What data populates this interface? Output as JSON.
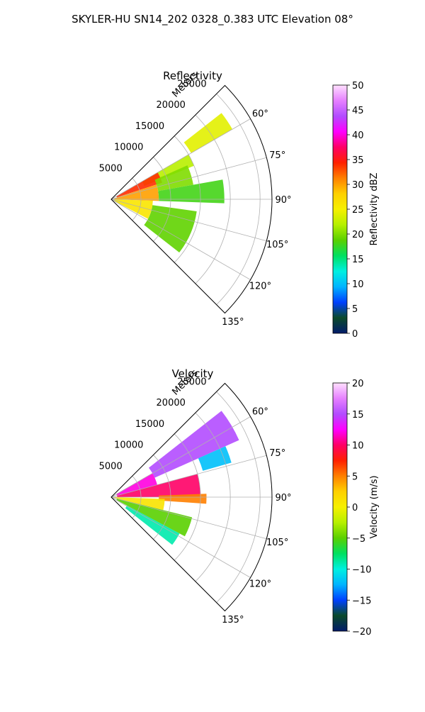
{
  "figure_title": "SKYLER-HU  SN14_202  0328_0.383 UTC Elevation 08°",
  "chart_data": [
    {
      "type": "heatmap",
      "subtype": "polar-sector radar PPI",
      "title": "Reflectivity",
      "radial_axis_label": "Meters",
      "radial_ticks": [
        5000,
        10000,
        15000,
        20000,
        25000
      ],
      "rlim": [
        0,
        27000
      ],
      "angle_ticks": [
        60,
        75,
        90,
        105,
        120,
        135
      ],
      "angle_tick_labels": [
        "60°",
        "75°",
        "90°",
        "105°",
        "120°",
        "135°"
      ],
      "theta_range_deg": [
        45,
        135
      ],
      "grid": true,
      "colorbar": {
        "label": "Reflectivity dBZ",
        "range": [
          0,
          50
        ],
        "ticks": [
          0,
          5,
          10,
          15,
          20,
          25,
          30,
          35,
          40,
          45,
          50
        ],
        "tick_labels": [
          "0",
          "5",
          "10",
          "15",
          "20",
          "25",
          "30",
          "35",
          "40",
          "45",
          "50"
        ],
        "stops": [
          "#021b6b",
          "#0a4a2a",
          "#0040ff",
          "#00b4ff",
          "#00f0e0",
          "#00e060",
          "#5ad000",
          "#b6f000",
          "#f6f000",
          "#ffd000",
          "#ff8000",
          "#ff2000",
          "#ff0066",
          "#ff00ff",
          "#b24cff",
          "#e680ff",
          "#ffe0ff"
        ]
      },
      "echo_regions": [
        {
          "theta": [
            52,
            60
          ],
          "r": [
            15500,
            23500
          ],
          "value": 24
        },
        {
          "theta": [
            60,
            68
          ],
          "r": [
            6000,
            15000
          ],
          "value": 22
        },
        {
          "theta": [
            60,
            72
          ],
          "r": [
            1000,
            9000
          ],
          "value": 34
        },
        {
          "theta": [
            72,
            92
          ],
          "r": [
            500,
            8000
          ],
          "value": 30
        },
        {
          "theta": [
            92,
            118
          ],
          "r": [
            500,
            7000
          ],
          "value": 26
        },
        {
          "theta": [
            66,
            80
          ],
          "r": [
            8000,
            14000
          ],
          "value": 20
        },
        {
          "theta": [
            80,
            92
          ],
          "r": [
            8000,
            19000
          ],
          "value": 18
        },
        {
          "theta": [
            98,
            128
          ],
          "r": [
            7000,
            14500
          ],
          "value": 19
        }
      ]
    },
    {
      "type": "heatmap",
      "subtype": "polar-sector radar PPI",
      "title": "Velocity",
      "radial_axis_label": "Meters",
      "radial_ticks": [
        5000,
        10000,
        15000,
        20000,
        25000
      ],
      "rlim": [
        0,
        27000
      ],
      "angle_ticks": [
        60,
        75,
        90,
        105,
        120,
        135
      ],
      "angle_tick_labels": [
        "60°",
        "75°",
        "90°",
        "105°",
        "120°",
        "135°"
      ],
      "theta_range_deg": [
        45,
        135
      ],
      "grid": true,
      "colorbar": {
        "label": "Velocity (m/s)",
        "range": [
          -20,
          20
        ],
        "ticks": [
          -20,
          -15,
          -10,
          -5,
          0,
          5,
          10,
          15,
          20
        ],
        "tick_labels": [
          "−20",
          "−15",
          "−10",
          "−5",
          "0",
          "5",
          "10",
          "15",
          "20"
        ],
        "stops": [
          "#021b6b",
          "#0a4a2a",
          "#0040ff",
          "#00b4ff",
          "#00f0e0",
          "#00e060",
          "#5ad000",
          "#b6f000",
          "#f6f000",
          "#ffd000",
          "#ff8000",
          "#ff2000",
          "#ff0066",
          "#ff00ff",
          "#b24cff",
          "#e680ff",
          "#ffe0ff"
        ]
      },
      "echo_regions": [
        {
          "theta": [
            52,
            66
          ],
          "r": [
            8000,
            23500
          ],
          "value": 15
        },
        {
          "theta": [
            60,
            75
          ],
          "r": [
            1000,
            8000
          ],
          "value": 12
        },
        {
          "theta": [
            66,
            74
          ],
          "r": [
            16000,
            21000
          ],
          "value": -12
        },
        {
          "theta": [
            75,
            90
          ],
          "r": [
            1000,
            15000
          ],
          "value": 10
        },
        {
          "theta": [
            88,
            94
          ],
          "r": [
            8000,
            16000
          ],
          "value": 5
        },
        {
          "theta": [
            92,
            104
          ],
          "r": [
            500,
            9000
          ],
          "value": 1
        },
        {
          "theta": [
            104,
            118
          ],
          "r": [
            1000,
            14000
          ],
          "value": -5
        },
        {
          "theta": [
            118,
            128
          ],
          "r": [
            3000,
            13000
          ],
          "value": -9
        }
      ]
    }
  ]
}
